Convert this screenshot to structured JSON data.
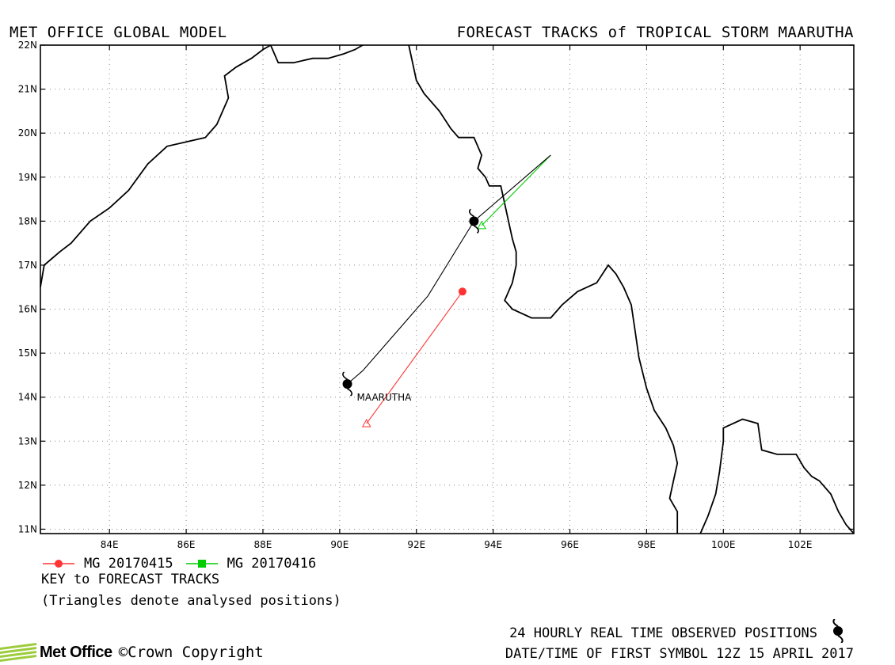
{
  "header": {
    "title_left": "MET OFFICE GLOBAL MODEL",
    "title_right": "FORECAST TRACKS of TROPICAL STORM MAARUTHA"
  },
  "map": {
    "lon_range": [
      82.2,
      103.4
    ],
    "lat_range": [
      10.9,
      22.0
    ],
    "lon_ticks": [
      "84E",
      "86E",
      "88E",
      "90E",
      "92E",
      "94E",
      "96E",
      "98E",
      "100E",
      "102E"
    ],
    "lat_ticks": [
      "11N",
      "12N",
      "13N",
      "14N",
      "15N",
      "16N",
      "17N",
      "18N",
      "19N",
      "20N",
      "21N",
      "22N"
    ],
    "grid": "dotted",
    "storm_label": "MAARUTHA"
  },
  "tracks": [
    {
      "name": "MG 20170415",
      "color": "#ff3333",
      "symbol": "circle",
      "points": [
        [
          93.2,
          16.4
        ],
        [
          90.7,
          13.4
        ]
      ],
      "analysed": [
        [
          90.7,
          13.4
        ]
      ]
    },
    {
      "name": "MG 20170416",
      "color": "#00cc00",
      "symbol": "square",
      "points": [
        [
          95.5,
          19.5
        ],
        [
          93.7,
          17.9
        ]
      ],
      "analysed": [
        [
          93.7,
          17.9
        ]
      ]
    }
  ],
  "observed_track": {
    "color": "#000000",
    "points": [
      [
        90.2,
        14.3
      ],
      [
        90.6,
        14.6
      ],
      [
        92.3,
        16.3
      ],
      [
        93.5,
        18.0
      ],
      [
        95.5,
        19.5
      ]
    ],
    "symbols": [
      [
        90.2,
        14.3
      ],
      [
        93.5,
        18.0
      ]
    ]
  },
  "legend": {
    "key_label": "KEY to FORECAST TRACKS",
    "note": "(Triangles denote analysed positions)"
  },
  "footer": {
    "observed_label": "24 HOURLY REAL TIME OBSERVED POSITIONS",
    "datetime_label": "DATE/TIME OF FIRST SYMBOL 12Z 15 APRIL 2017",
    "logo_text": "Met Office",
    "copyright": "©Crown Copyright"
  }
}
